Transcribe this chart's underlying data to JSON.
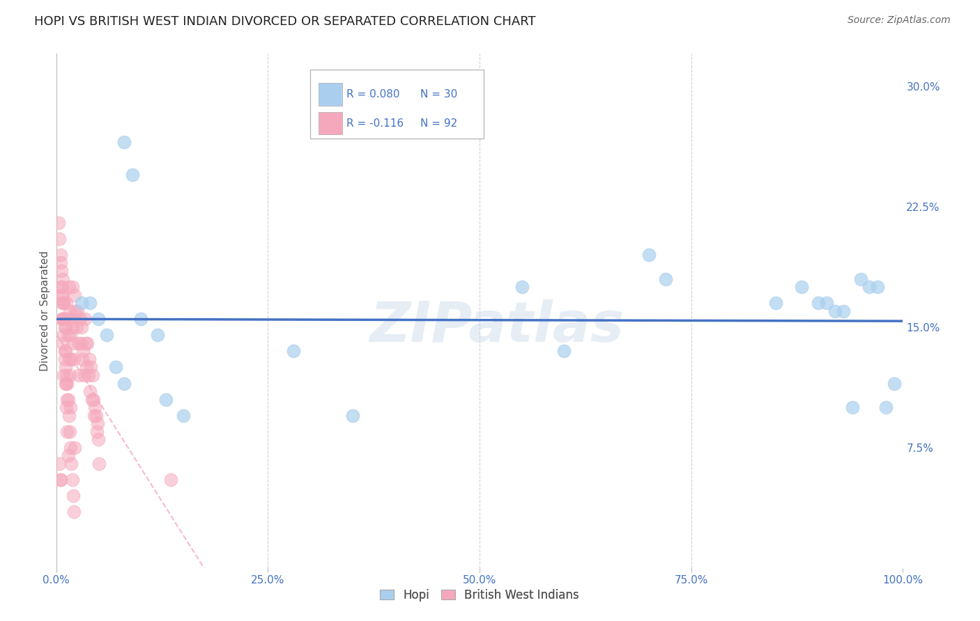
{
  "title": "HOPI VS BRITISH WEST INDIAN DIVORCED OR SEPARATED CORRELATION CHART",
  "source": "Source: ZipAtlas.com",
  "ylabel": "Divorced or Separated",
  "x_tick_labels": [
    "0.0%",
    "25.0%",
    "50.0%",
    "75.0%",
    "100.0%"
  ],
  "x_tick_positions": [
    0.0,
    0.25,
    0.5,
    0.75,
    1.0
  ],
  "y_tick_labels": [
    "7.5%",
    "15.0%",
    "22.5%",
    "30.0%"
  ],
  "y_tick_positions": [
    0.075,
    0.15,
    0.225,
    0.3
  ],
  "xlim": [
    0.0,
    1.0
  ],
  "ylim": [
    0.0,
    0.32
  ],
  "legend_labels_bottom": [
    "Hopi",
    "British West Indians"
  ],
  "hopi_color": "#aacfee",
  "bwi_color": "#f5a8bc",
  "hopi_line_color": "#4472c4",
  "bwi_line_color": "#f5a8bc",
  "watermark": "ZIPatlas",
  "hopi_scatter_x": [
    0.08,
    0.09,
    0.03,
    0.04,
    0.05,
    0.06,
    0.1,
    0.12,
    0.07,
    0.08,
    0.13,
    0.15,
    0.28,
    0.35,
    0.55,
    0.6,
    0.85,
    0.88,
    0.9,
    0.91,
    0.92,
    0.93,
    0.94,
    0.95,
    0.96,
    0.97,
    0.98,
    0.99,
    0.7,
    0.72
  ],
  "hopi_scatter_y": [
    0.265,
    0.245,
    0.165,
    0.165,
    0.155,
    0.145,
    0.155,
    0.145,
    0.125,
    0.115,
    0.105,
    0.095,
    0.135,
    0.095,
    0.175,
    0.135,
    0.165,
    0.175,
    0.165,
    0.165,
    0.16,
    0.16,
    0.1,
    0.18,
    0.175,
    0.175,
    0.1,
    0.115,
    0.195,
    0.18
  ],
  "bwi_scatter_x": [
    0.003,
    0.004,
    0.005,
    0.005,
    0.006,
    0.007,
    0.008,
    0.009,
    0.01,
    0.011,
    0.012,
    0.013,
    0.014,
    0.015,
    0.016,
    0.017,
    0.018,
    0.019,
    0.02,
    0.021,
    0.022,
    0.023,
    0.024,
    0.025,
    0.026,
    0.027,
    0.028,
    0.029,
    0.03,
    0.031,
    0.032,
    0.033,
    0.034,
    0.035,
    0.036,
    0.037,
    0.038,
    0.039,
    0.04,
    0.041,
    0.042,
    0.043,
    0.044,
    0.045,
    0.046,
    0.047,
    0.048,
    0.049,
    0.05,
    0.051,
    0.005,
    0.006,
    0.007,
    0.008,
    0.009,
    0.01,
    0.011,
    0.012,
    0.013,
    0.014,
    0.015,
    0.016,
    0.017,
    0.018,
    0.019,
    0.007,
    0.008,
    0.009,
    0.01,
    0.011,
    0.012,
    0.013,
    0.014,
    0.015,
    0.016,
    0.017,
    0.018,
    0.019,
    0.02,
    0.021,
    0.022,
    0.004,
    0.005,
    0.006,
    0.007,
    0.008,
    0.009,
    0.01,
    0.011,
    0.012,
    0.013,
    0.135
  ],
  "bwi_scatter_y": [
    0.215,
    0.205,
    0.195,
    0.19,
    0.185,
    0.175,
    0.17,
    0.165,
    0.155,
    0.15,
    0.165,
    0.155,
    0.145,
    0.13,
    0.12,
    0.1,
    0.155,
    0.15,
    0.14,
    0.13,
    0.17,
    0.16,
    0.15,
    0.16,
    0.14,
    0.12,
    0.155,
    0.14,
    0.15,
    0.13,
    0.135,
    0.12,
    0.155,
    0.14,
    0.125,
    0.14,
    0.12,
    0.13,
    0.11,
    0.125,
    0.105,
    0.12,
    0.105,
    0.095,
    0.1,
    0.095,
    0.085,
    0.09,
    0.08,
    0.065,
    0.055,
    0.17,
    0.155,
    0.14,
    0.12,
    0.13,
    0.115,
    0.1,
    0.085,
    0.07,
    0.175,
    0.16,
    0.145,
    0.13,
    0.175,
    0.155,
    0.18,
    0.165,
    0.15,
    0.135,
    0.12,
    0.115,
    0.105,
    0.095,
    0.085,
    0.075,
    0.065,
    0.055,
    0.045,
    0.035,
    0.075,
    0.065,
    0.055,
    0.175,
    0.165,
    0.155,
    0.145,
    0.135,
    0.125,
    0.115,
    0.105,
    0.055
  ]
}
